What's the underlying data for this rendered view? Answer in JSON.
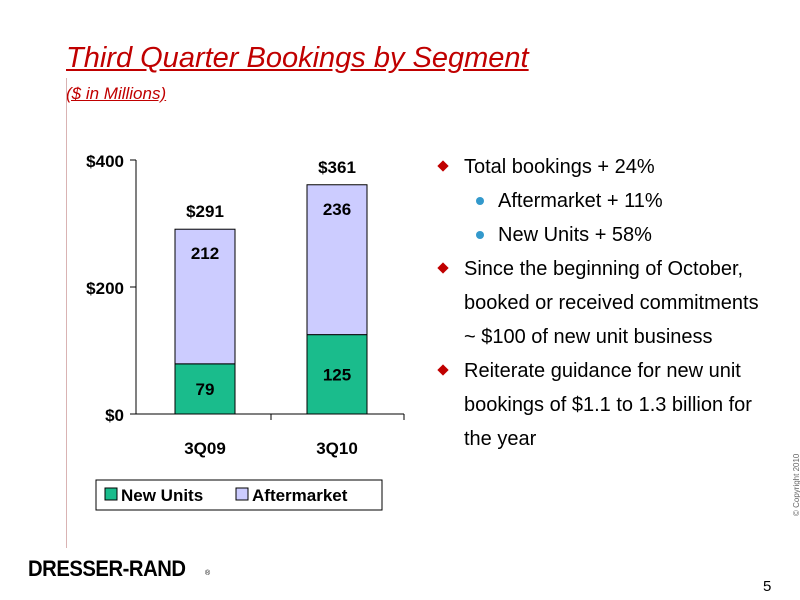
{
  "slide": {
    "title": "Third Quarter Bookings by Segment",
    "subtitle": "($ in Millions)",
    "logo_text": "DRESSER-RAND",
    "logo_mark": "®",
    "copyright": "© Copyright 2010",
    "page_number": "5"
  },
  "bullets": [
    {
      "level": 1,
      "text": "Total bookings + 24%"
    },
    {
      "level": 2,
      "text": "Aftermarket + 11%"
    },
    {
      "level": 2,
      "text": "New Units + 58%"
    },
    {
      "level": 1,
      "text": "Since the beginning of October, booked or received commitments ~ $100 of new unit business"
    },
    {
      "level": 1,
      "text": "Reiterate guidance for new unit bookings of $1.1 to 1.3 billion for the year"
    }
  ],
  "chart_data": {
    "type": "bar",
    "stacked": true,
    "categories": [
      "3Q09",
      "3Q10"
    ],
    "series": [
      {
        "name": "New Units",
        "values": [
          79,
          125
        ],
        "color": "#1abc8c"
      },
      {
        "name": "Aftermarket",
        "values": [
          212,
          236
        ],
        "color": "#ccccff"
      }
    ],
    "totals": [
      "$291",
      "$361"
    ],
    "segment_labels": [
      [
        "79",
        "125"
      ],
      [
        "212",
        "236"
      ]
    ],
    "ylim": [
      0,
      400
    ],
    "yticks": [
      0,
      200,
      400
    ],
    "ytick_labels": [
      "$0",
      "$200",
      "$400"
    ],
    "grid": false,
    "legend": "bottom"
  }
}
